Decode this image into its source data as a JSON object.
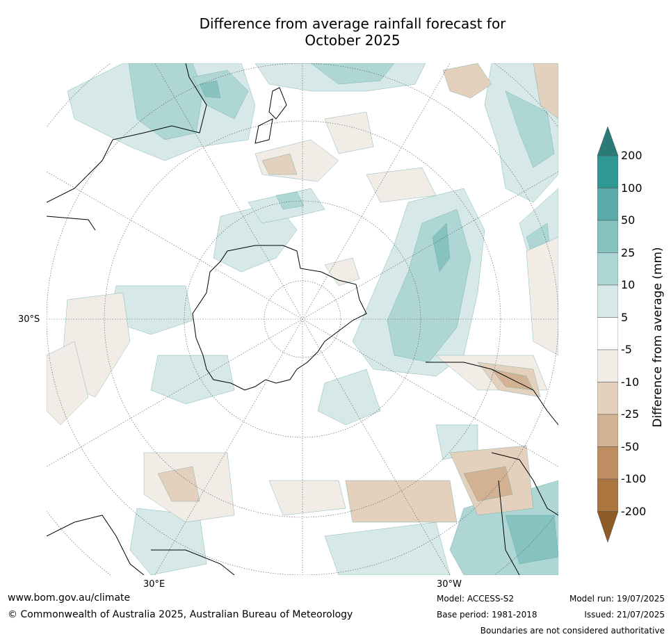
{
  "title_line1": "Difference from average rainfall forecast for",
  "title_line2": "October 2025",
  "map_labels": {
    "lat_30s": "30°S",
    "lon_30e": "30°E",
    "lon_30w": "30°W"
  },
  "colorbar": {
    "title": "Difference from average (mm)",
    "ticks": [
      "200",
      "100",
      "50",
      "25",
      "10",
      "5",
      "-5",
      "-10",
      "-25",
      "-50",
      "-100",
      "-200"
    ],
    "colors": [
      "#2a7b78",
      "#2f9895",
      "#5aabaa",
      "#85c2c0",
      "#aed6d5",
      "#d6e9e8",
      "#ffffff",
      "#f1ece6",
      "#e3d0bd",
      "#d2b292",
      "#be8e62",
      "#ab753f",
      "#8e5a25"
    ]
  },
  "footer": {
    "url": "www.bom.gov.au/climate",
    "copyright": "© Commonwealth of Australia 2025, Australian Bureau of Meteorology",
    "model": "Model: ACCESS-S2",
    "base_period": "Base period: 1981-2018",
    "model_run": "Model run: 19/07/2025",
    "issued": "Issued: 21/07/2025",
    "disclaimer": "Boundaries are not considered authoritative"
  }
}
